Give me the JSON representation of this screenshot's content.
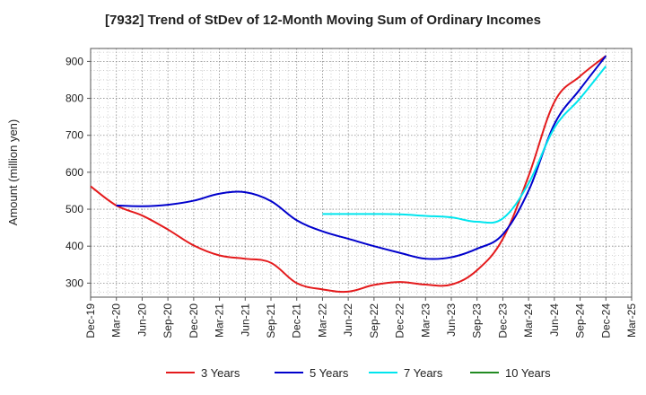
{
  "chart_data": {
    "type": "line",
    "title": "[7932]  Trend of StDev of 12-Month Moving Sum of Ordinary Incomes",
    "xlabel": "",
    "ylabel": "Amount (million yen)",
    "ylim": [
      262,
      935
    ],
    "yticks": [
      300,
      400,
      500,
      600,
      700,
      800,
      900
    ],
    "grid": true,
    "legend_position": "bottom",
    "categories": [
      "Dec-19",
      "Mar-20",
      "Jun-20",
      "Sep-20",
      "Dec-20",
      "Mar-21",
      "Jun-21",
      "Sep-21",
      "Dec-21",
      "Mar-22",
      "Jun-22",
      "Sep-22",
      "Dec-22",
      "Mar-23",
      "Jun-23",
      "Sep-23",
      "Dec-23",
      "Mar-24",
      "Jun-24",
      "Sep-24",
      "Dec-24",
      "Mar-25"
    ],
    "series": [
      {
        "name": "3 Years",
        "color": "#e41a1c",
        "values": [
          562,
          510,
          483,
          445,
          402,
          375,
          366,
          355,
          300,
          283,
          277,
          295,
          303,
          296,
          296,
          335,
          420,
          590,
          790,
          860,
          915,
          null
        ]
      },
      {
        "name": "5 Years",
        "color": "#0000cc",
        "values": [
          null,
          510,
          508,
          512,
          523,
          542,
          546,
          522,
          470,
          440,
          420,
          400,
          382,
          366,
          370,
          393,
          432,
          550,
          730,
          825,
          915,
          null
        ]
      },
      {
        "name": "7 Years",
        "color": "#00e5ee",
        "values": [
          null,
          null,
          null,
          null,
          null,
          null,
          null,
          null,
          null,
          487,
          487,
          487,
          486,
          482,
          478,
          466,
          475,
          570,
          720,
          800,
          887,
          null
        ]
      },
      {
        "name": "10 Years",
        "color": "#228b22",
        "values": [
          null,
          null,
          null,
          null,
          null,
          null,
          null,
          null,
          null,
          null,
          null,
          null,
          null,
          null,
          null,
          null,
          null,
          null,
          null,
          null,
          null,
          null
        ]
      }
    ]
  }
}
